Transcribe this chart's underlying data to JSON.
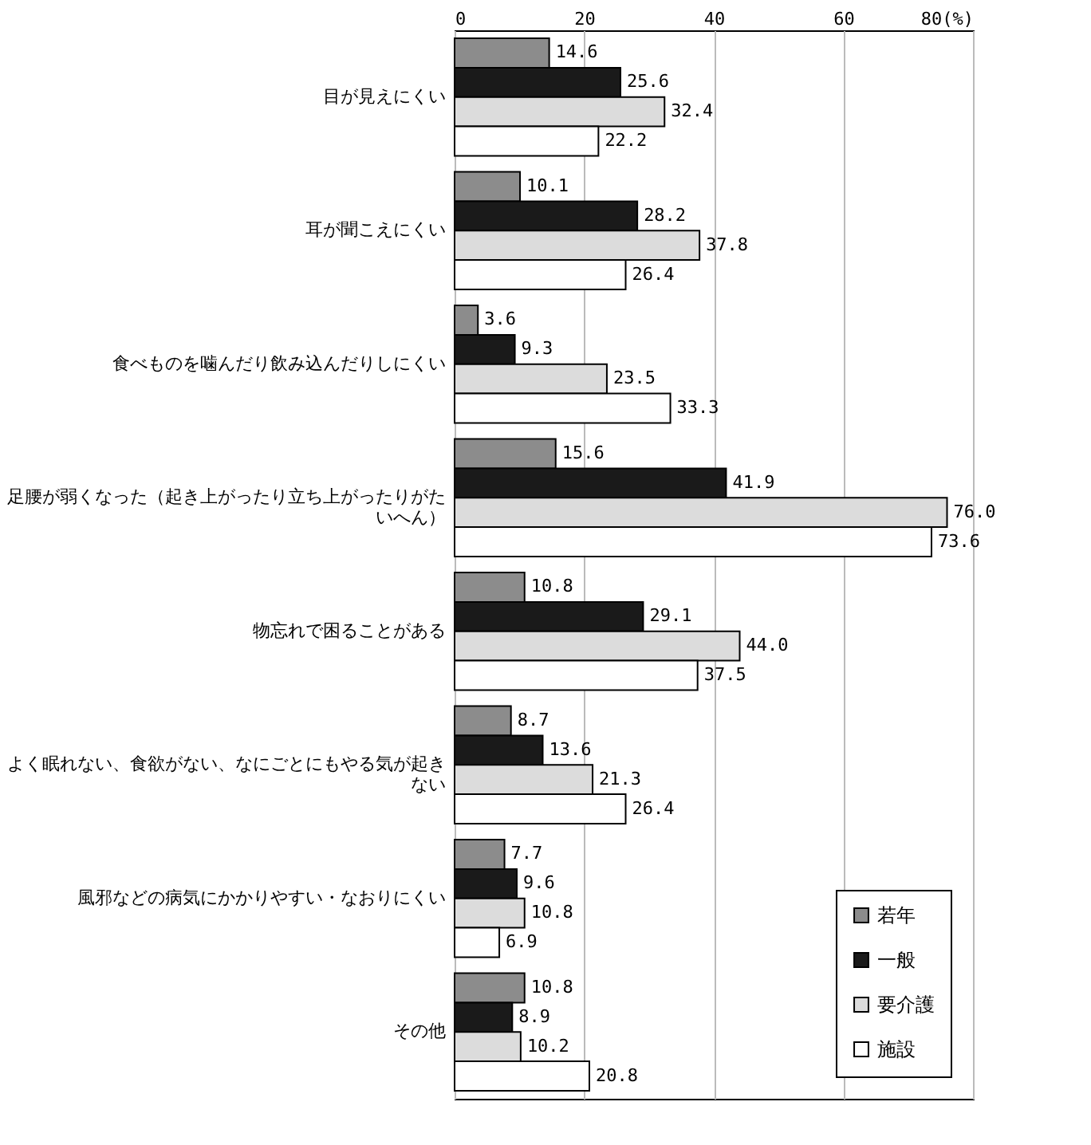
{
  "chart_data": {
    "type": "bar",
    "orientation": "horizontal",
    "categories": [
      "目が見えにくい",
      "耳が聞こえにくい",
      "食べものを噛んだり飲み込んだりしにくい",
      "足腰が弱くなった（起き上がったり立ち上がったりがたいへん）",
      "物忘れで困ることがある",
      "よく眠れない、食欲がない、なにごとにもやる気が起きない",
      "風邪などの病気にかかりやすい・なおりにくい",
      "その他"
    ],
    "series": [
      {
        "name": "若年",
        "color": "#8c8c8c",
        "values": [
          14.6,
          10.1,
          3.6,
          15.6,
          10.8,
          8.7,
          7.7,
          10.8
        ],
        "value_labels": [
          "14.6",
          "10.1",
          "3.6",
          "15.6",
          "10.8",
          "8.7",
          "7.7",
          "10.8"
        ]
      },
      {
        "name": "一般",
        "color": "#1a1a1a",
        "values": [
          25.6,
          28.2,
          9.3,
          41.9,
          29.1,
          13.6,
          9.6,
          8.9
        ],
        "value_labels": [
          "25.6",
          "28.2",
          "9.3",
          "41.9",
          "29.1",
          "13.6",
          "9.6",
          "8.9"
        ]
      },
      {
        "name": "要介護",
        "color": "#dcdcdc",
        "values": [
          32.4,
          37.8,
          23.5,
          76,
          44,
          21.3,
          10.8,
          10.2
        ],
        "value_labels": [
          "32.4",
          "37.8",
          "23.5",
          "76.0",
          "44.0",
          "21.3",
          "10.8",
          "10.2"
        ]
      },
      {
        "name": "施設",
        "color": "#ffffff",
        "values": [
          22.2,
          26.4,
          33.3,
          73.6,
          37.5,
          26.4,
          6.9,
          20.8
        ],
        "value_labels": [
          "22.2",
          "26.4",
          "33.3",
          "73.6",
          "37.5",
          "26.4",
          "6.9",
          "20.8"
        ]
      }
    ],
    "xlim": [
      0,
      80
    ],
    "xticks": [
      0,
      20,
      40,
      60,
      {
        "value": 80,
        "label": "80(%)"
      }
    ],
    "grid": "x",
    "legend": "bottom right"
  }
}
